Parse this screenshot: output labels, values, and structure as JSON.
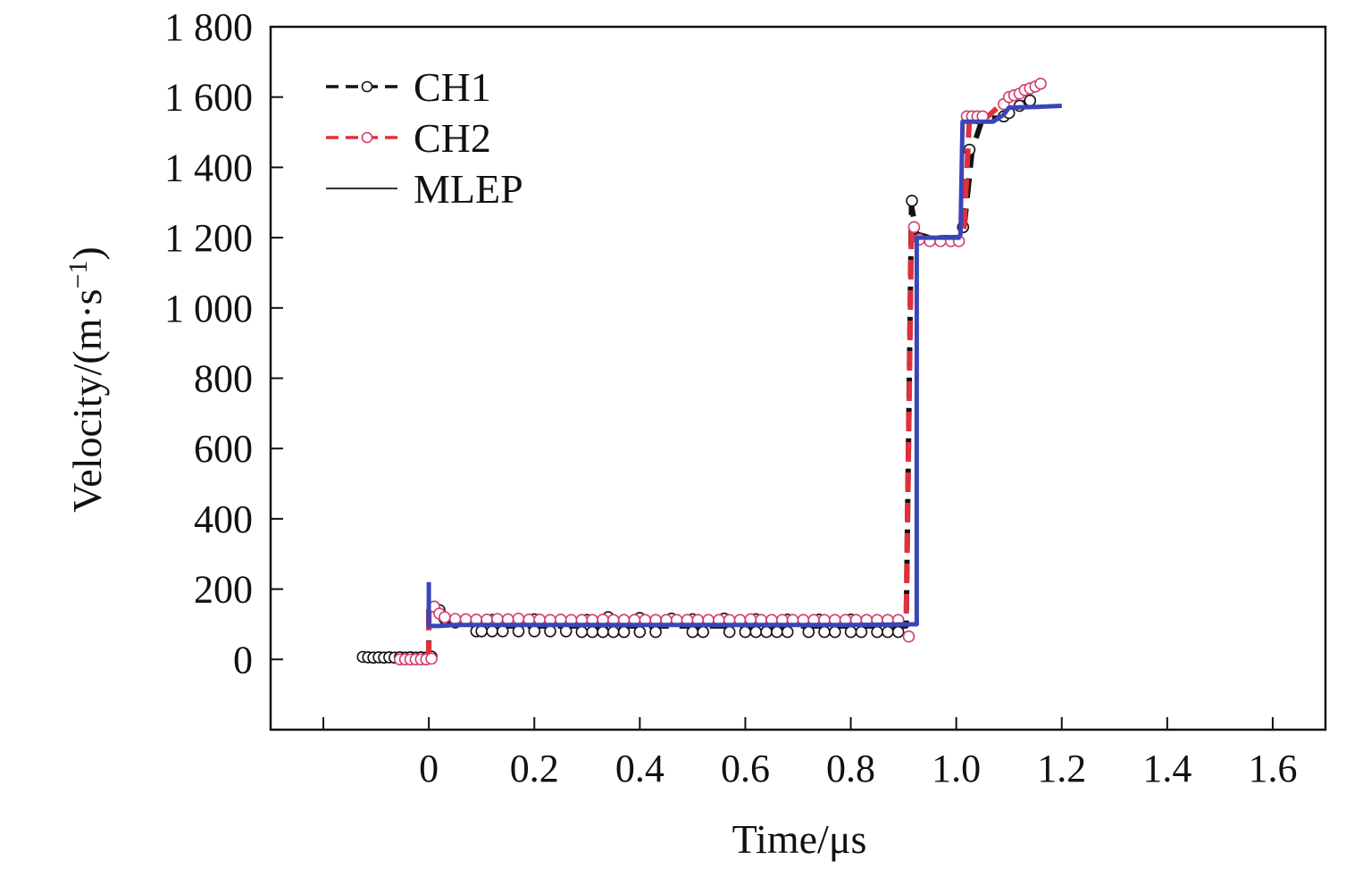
{
  "chart_data": {
    "type": "line",
    "xlabel": "Time/μs",
    "ylabel_main": "Velocity/(m·s",
    "ylabel_sup": "−1",
    "ylabel_close": ")",
    "xlim": [
      -0.3,
      1.7
    ],
    "ylim": [
      -200,
      1800
    ],
    "xticks": [
      {
        "value": -0.2,
        "label": ""
      },
      {
        "value": 0,
        "label": "0"
      },
      {
        "value": 0.2,
        "label": "0.2"
      },
      {
        "value": 0.4,
        "label": "0.4"
      },
      {
        "value": 0.6,
        "label": "0.6"
      },
      {
        "value": 0.8,
        "label": "0.8"
      },
      {
        "value": 1.0,
        "label": "1.0"
      },
      {
        "value": 1.2,
        "label": "1.2"
      },
      {
        "value": 1.4,
        "label": "1.4"
      },
      {
        "value": 1.6,
        "label": "1.6"
      }
    ],
    "yticks": [
      {
        "value": 0,
        "label": "0"
      },
      {
        "value": 200,
        "label": "200"
      },
      {
        "value": 400,
        "label": "400"
      },
      {
        "value": 600,
        "label": "600"
      },
      {
        "value": 800,
        "label": "800"
      },
      {
        "value": 1000,
        "label": "1 000"
      },
      {
        "value": 1200,
        "label": "1 200"
      },
      {
        "value": 1400,
        "label": "1 400"
      },
      {
        "value": 1600,
        "label": "1 600"
      },
      {
        "value": 1800,
        "label": "1 800"
      }
    ],
    "legend_position": "top-left",
    "series": [
      {
        "name": "CH1",
        "color": "#111111",
        "line_style": "dashed",
        "marker": "circle",
        "line": [
          [
            -0.12,
            5
          ],
          [
            -0.05,
            5
          ],
          [
            0.0,
            5
          ],
          [
            0.0,
            140
          ],
          [
            0.02,
            130
          ],
          [
            0.05,
            105
          ],
          [
            0.1,
            95
          ],
          [
            0.3,
            95
          ],
          [
            0.5,
            95
          ],
          [
            0.7,
            95
          ],
          [
            0.9,
            95
          ],
          [
            0.905,
            95
          ],
          [
            0.915,
            1290
          ],
          [
            0.925,
            1210
          ],
          [
            0.95,
            1200
          ],
          [
            1.005,
            1200
          ],
          [
            1.015,
            1230
          ],
          [
            1.03,
            1450
          ],
          [
            1.05,
            1540
          ],
          [
            1.08,
            1540
          ],
          [
            1.1,
            1560
          ],
          [
            1.12,
            1580
          ],
          [
            1.14,
            1590
          ]
        ],
        "markers": [
          [
            -0.125,
            7
          ],
          [
            -0.115,
            6
          ],
          [
            -0.105,
            5
          ],
          [
            -0.095,
            6
          ],
          [
            -0.085,
            5
          ],
          [
            -0.075,
            6
          ],
          [
            -0.065,
            5
          ],
          [
            -0.055,
            6
          ],
          [
            -0.045,
            5
          ],
          [
            -0.035,
            6
          ],
          [
            -0.025,
            5
          ],
          [
            -0.015,
            6
          ],
          [
            -0.005,
            5
          ],
          [
            0.005,
            8
          ],
          [
            0.01,
            150
          ],
          [
            0.02,
            140
          ],
          [
            0.03,
            115
          ],
          [
            0.05,
            105
          ],
          [
            0.09,
            80
          ],
          [
            0.1,
            80
          ],
          [
            0.12,
            80
          ],
          [
            0.14,
            80
          ],
          [
            0.17,
            80
          ],
          [
            0.2,
            80
          ],
          [
            0.23,
            80
          ],
          [
            0.26,
            80
          ],
          [
            0.29,
            78
          ],
          [
            0.31,
            78
          ],
          [
            0.33,
            78
          ],
          [
            0.35,
            78
          ],
          [
            0.37,
            78
          ],
          [
            0.4,
            78
          ],
          [
            0.43,
            78
          ],
          [
            0.5,
            78
          ],
          [
            0.52,
            78
          ],
          [
            0.57,
            78
          ],
          [
            0.6,
            78
          ],
          [
            0.62,
            78
          ],
          [
            0.64,
            78
          ],
          [
            0.66,
            78
          ],
          [
            0.68,
            78
          ],
          [
            0.72,
            78
          ],
          [
            0.75,
            78
          ],
          [
            0.77,
            78
          ],
          [
            0.8,
            78
          ],
          [
            0.82,
            78
          ],
          [
            0.85,
            78
          ],
          [
            0.87,
            78
          ],
          [
            0.89,
            78
          ],
          [
            0.12,
            112
          ],
          [
            0.2,
            114
          ],
          [
            0.3,
            112
          ],
          [
            0.34,
            120
          ],
          [
            0.4,
            118
          ],
          [
            0.46,
            116
          ],
          [
            0.5,
            114
          ],
          [
            0.56,
            116
          ],
          [
            0.62,
            114
          ],
          [
            0.68,
            113
          ],
          [
            0.74,
            113
          ],
          [
            0.8,
            113
          ],
          [
            0.916,
            1305
          ],
          [
            1.013,
            1230
          ],
          [
            1.025,
            1450
          ],
          [
            1.04,
            1540
          ],
          [
            1.09,
            1545
          ],
          [
            1.1,
            1555
          ],
          [
            1.12,
            1575
          ],
          [
            1.14,
            1590
          ]
        ]
      },
      {
        "name": "CH2",
        "color": "#e0303a",
        "marker_color": "#d04070",
        "line_style": "dashed",
        "marker": "circle",
        "line": [
          [
            -0.06,
            0
          ],
          [
            0.0,
            0
          ],
          [
            0.0,
            160
          ],
          [
            0.02,
            130
          ],
          [
            0.05,
            115
          ],
          [
            0.1,
            112
          ],
          [
            0.3,
            112
          ],
          [
            0.5,
            112
          ],
          [
            0.7,
            112
          ],
          [
            0.9,
            112
          ],
          [
            0.905,
            112
          ],
          [
            0.915,
            1230
          ],
          [
            0.925,
            1195
          ],
          [
            0.95,
            1190
          ],
          [
            1.005,
            1190
          ],
          [
            1.015,
            1230
          ],
          [
            1.025,
            1540
          ],
          [
            1.06,
            1545
          ],
          [
            1.1,
            1600
          ],
          [
            1.13,
            1620
          ],
          [
            1.165,
            1640
          ]
        ],
        "markers": [
          [
            -0.055,
            0
          ],
          [
            -0.045,
            0
          ],
          [
            -0.035,
            0
          ],
          [
            -0.025,
            0
          ],
          [
            -0.015,
            0
          ],
          [
            -0.005,
            0
          ],
          [
            0.005,
            2
          ],
          [
            0.01,
            150
          ],
          [
            0.02,
            130
          ],
          [
            0.03,
            120
          ],
          [
            0.05,
            115
          ],
          [
            0.07,
            114
          ],
          [
            0.09,
            113
          ],
          [
            0.11,
            113
          ],
          [
            0.13,
            115
          ],
          [
            0.15,
            114
          ],
          [
            0.17,
            116
          ],
          [
            0.19,
            113
          ],
          [
            0.21,
            113
          ],
          [
            0.23,
            112
          ],
          [
            0.25,
            113
          ],
          [
            0.27,
            112
          ],
          [
            0.29,
            112
          ],
          [
            0.31,
            112
          ],
          [
            0.33,
            113
          ],
          [
            0.35,
            112
          ],
          [
            0.37,
            112
          ],
          [
            0.39,
            112
          ],
          [
            0.41,
            112
          ],
          [
            0.43,
            112
          ],
          [
            0.45,
            112
          ],
          [
            0.47,
            112
          ],
          [
            0.49,
            112
          ],
          [
            0.51,
            112
          ],
          [
            0.53,
            112
          ],
          [
            0.55,
            112
          ],
          [
            0.57,
            112
          ],
          [
            0.59,
            112
          ],
          [
            0.61,
            114
          ],
          [
            0.63,
            112
          ],
          [
            0.65,
            112
          ],
          [
            0.67,
            112
          ],
          [
            0.69,
            112
          ],
          [
            0.71,
            112
          ],
          [
            0.73,
            112
          ],
          [
            0.75,
            112
          ],
          [
            0.77,
            112
          ],
          [
            0.79,
            112
          ],
          [
            0.81,
            112
          ],
          [
            0.83,
            112
          ],
          [
            0.85,
            112
          ],
          [
            0.87,
            112
          ],
          [
            0.89,
            112
          ],
          [
            0.91,
            65
          ],
          [
            0.92,
            1230
          ],
          [
            0.93,
            1195
          ],
          [
            0.95,
            1190
          ],
          [
            0.97,
            1190
          ],
          [
            0.99,
            1190
          ],
          [
            1.005,
            1190
          ],
          [
            1.02,
            1545
          ],
          [
            1.03,
            1545
          ],
          [
            1.04,
            1545
          ],
          [
            1.05,
            1545
          ],
          [
            1.09,
            1580
          ],
          [
            1.1,
            1600
          ],
          [
            1.11,
            1605
          ],
          [
            1.12,
            1610
          ],
          [
            1.13,
            1620
          ],
          [
            1.14,
            1625
          ],
          [
            1.15,
            1630
          ],
          [
            1.16,
            1638
          ]
        ]
      },
      {
        "name": "MLEP",
        "color": "#3b45b8",
        "line_style": "solid",
        "marker": "none",
        "line": [
          [
            0.0,
            220
          ],
          [
            0.0,
            95
          ],
          [
            0.02,
            95
          ],
          [
            0.05,
            98
          ],
          [
            0.2,
            98
          ],
          [
            0.4,
            98
          ],
          [
            0.6,
            98
          ],
          [
            0.8,
            98
          ],
          [
            0.92,
            100
          ],
          [
            0.925,
            100
          ],
          [
            0.925,
            1200
          ],
          [
            1.005,
            1200
          ],
          [
            1.008,
            1210
          ],
          [
            1.012,
            1530
          ],
          [
            1.07,
            1530
          ],
          [
            1.09,
            1550
          ],
          [
            1.1,
            1570
          ],
          [
            1.15,
            1572
          ],
          [
            1.2,
            1575
          ]
        ]
      }
    ]
  }
}
